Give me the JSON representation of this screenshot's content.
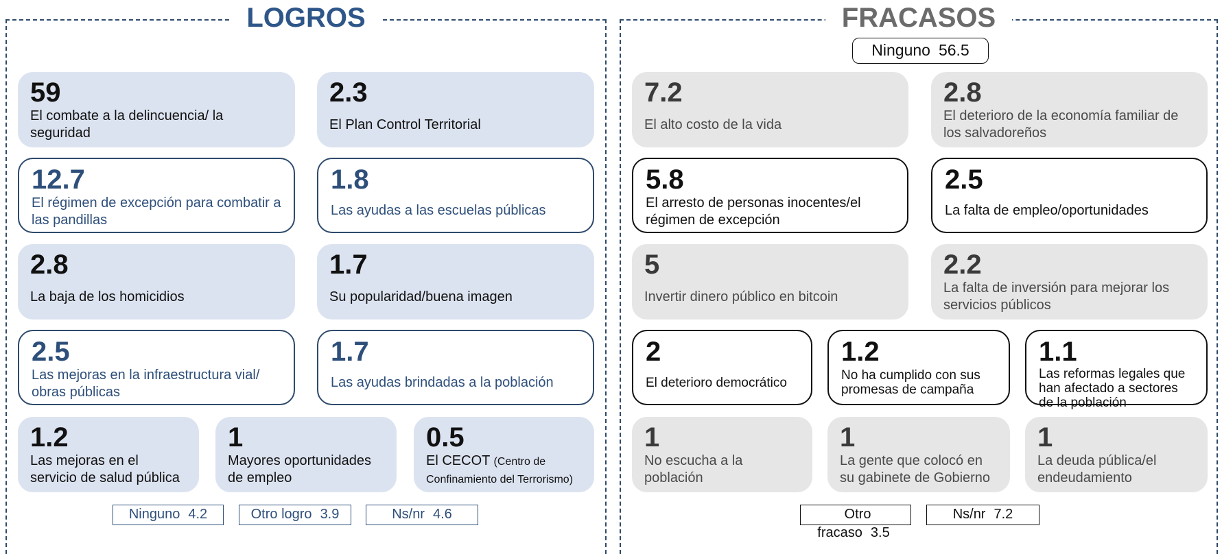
{
  "logros": {
    "title": "LOGROS",
    "rows": [
      [
        {
          "value": 59,
          "label": "El combate a la delincuencia/ la seguridad"
        },
        {
          "value": 2.3,
          "label": "El Plan Control Territorial"
        }
      ],
      [
        {
          "value": 12.7,
          "label": "El régimen de excepción para combatir a las pandillas"
        },
        {
          "value": 1.8,
          "label": "Las ayudas a las escuelas públicas"
        }
      ],
      [
        {
          "value": 2.8,
          "label": "La baja de los homicidios"
        },
        {
          "value": 1.7,
          "label": "Su popularidad/buena imagen"
        }
      ],
      [
        {
          "value": 2.5,
          "label": "Las mejoras en la infraestructura vial/ obras públicas"
        },
        {
          "value": 1.7,
          "label": "Las ayudas brindadas a la población"
        }
      ],
      [
        {
          "value": 1.2,
          "label": "Las mejoras en el servicio de salud pública"
        },
        {
          "value": 1,
          "label": "Mayores oportunidades de empleo"
        },
        {
          "value": 0.5,
          "label": "El CECOT",
          "note": "(Centro de Confinamiento del Terrorismo)"
        }
      ]
    ],
    "footer": [
      {
        "label": "Ninguno",
        "value": 4.2
      },
      {
        "label": "Otro logro",
        "value": 3.9
      },
      {
        "label": "Ns/nr",
        "value": 4.6
      }
    ]
  },
  "fracasos": {
    "title": "FRACASOS",
    "top": {
      "label": "Ninguno",
      "value": 56.5
    },
    "rows": [
      [
        {
          "value": 7.2,
          "label": "El alto costo de la vida"
        },
        {
          "value": 2.8,
          "label": "El deterioro de la economía familiar de los salvadoreños"
        }
      ],
      [
        {
          "value": 5.8,
          "label": "El arresto de personas inocentes/el régimen de excepción"
        },
        {
          "value": 2.5,
          "label": "La falta de empleo/oportunidades"
        }
      ],
      [
        {
          "value": 5,
          "label": "Invertir dinero público en bitcoin"
        },
        {
          "value": 2.2,
          "label": "La falta de inversión para mejorar los servicios públicos"
        }
      ],
      [
        {
          "value": 2,
          "label": "El deterioro democrático"
        },
        {
          "value": 1.2,
          "label": "No ha cumplido con sus promesas de campaña"
        },
        {
          "value": 1.1,
          "label": "Las reformas legales que han afectado a sectores de la población"
        }
      ],
      [
        {
          "value": 1,
          "label": "No escucha a la población"
        },
        {
          "value": 1,
          "label": "La gente que colocó en su gabinete de Gobierno"
        },
        {
          "value": 1,
          "label": "La deuda pública/el endeudamiento"
        }
      ]
    ],
    "footer": [
      {
        "label": "Otro fracaso",
        "value": 3.5
      },
      {
        "label": "Ns/nr",
        "value": 7.2
      }
    ]
  }
}
